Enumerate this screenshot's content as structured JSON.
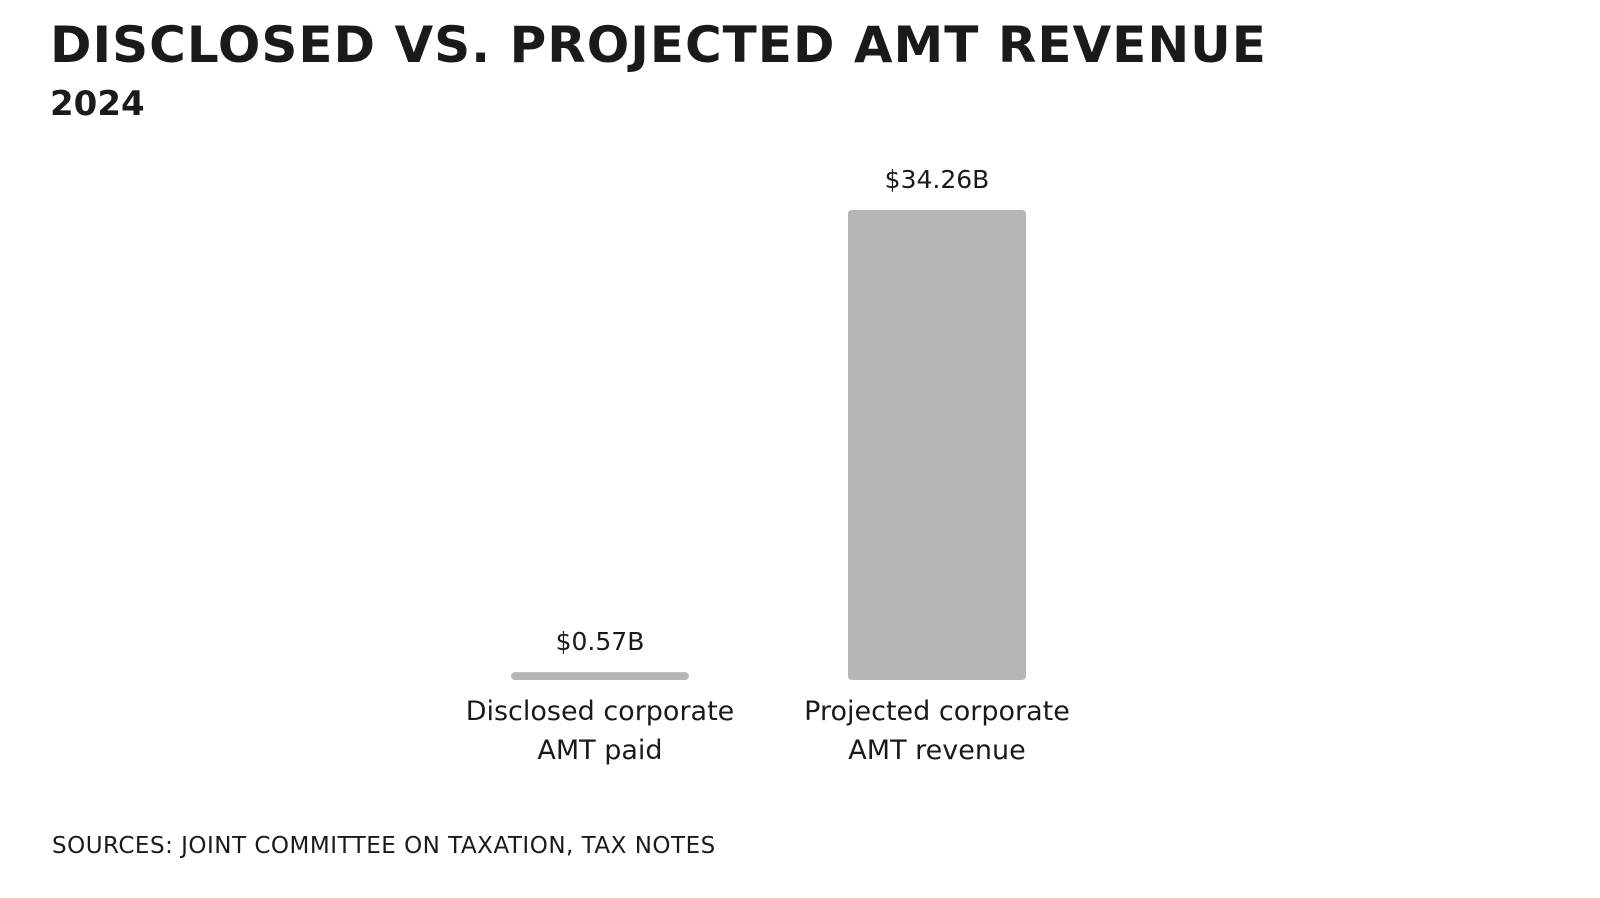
{
  "title": "DISCLOSED VS. PROJECTED AMT REVENUE",
  "subtitle": "2024",
  "source": "SOURCES: JOINT COMMITTEE ON TAXATION, TAX NOTES",
  "colors": {
    "bar": "#b6b5b6",
    "text": "#1a1a1a",
    "background": "#ffffff"
  },
  "chart_data": {
    "type": "bar",
    "categories": [
      [
        "Disclosed corporate",
        "AMT paid"
      ],
      [
        "Projected corporate",
        "AMT revenue"
      ]
    ],
    "values": [
      0.57,
      34.26
    ],
    "value_labels": [
      "$0.57B",
      "$34.26B"
    ],
    "unit": "billion USD",
    "ylim": [
      0,
      34.26
    ],
    "title": "DISCLOSED VS. PROJECTED AMT REVENUE",
    "subtitle": "2024",
    "xlabel": "",
    "ylabel": "",
    "grid": false,
    "legend": false
  }
}
